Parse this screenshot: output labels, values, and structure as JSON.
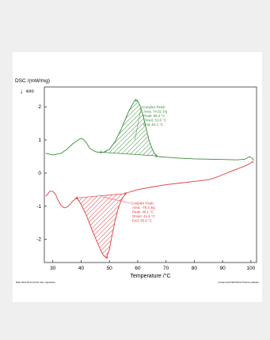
{
  "chart_data": {
    "type": "line",
    "title": "",
    "ylabel": "DSC /(mW/mg)",
    "exo_label": "exo",
    "exo_arrow_glyph": "↓",
    "xlabel": "Temperature /°C",
    "xlim": [
      27,
      102
    ],
    "ylim": [
      -2.7,
      2.6
    ],
    "x_ticks": [
      30,
      40,
      50,
      60,
      70,
      80,
      90,
      100
    ],
    "y_ticks": [
      -2,
      -1,
      0,
      1,
      2
    ],
    "grid": false,
    "series": [
      {
        "color": "#3c8c3c",
        "x": [
          27.5,
          30,
          33,
          35,
          37,
          39,
          40,
          41,
          42,
          43,
          45,
          46,
          48,
          50,
          52,
          54,
          55,
          56,
          57,
          58,
          59,
          60,
          61,
          62,
          63,
          64,
          65,
          66,
          67,
          70,
          75,
          80,
          85,
          90,
          95,
          98,
          99.5,
          100.5,
          101
        ],
        "y": [
          0.6,
          0.55,
          0.6,
          0.72,
          0.88,
          1.0,
          1.05,
          1.0,
          0.9,
          0.75,
          0.65,
          0.63,
          0.63,
          0.72,
          0.95,
          1.3,
          1.5,
          1.7,
          1.9,
          2.05,
          2.2,
          2.18,
          2.0,
          1.7,
          1.35,
          1.0,
          0.75,
          0.58,
          0.5,
          0.48,
          0.45,
          0.43,
          0.42,
          0.41,
          0.4,
          0.42,
          0.5,
          0.45,
          0.38
        ]
      },
      {
        "color": "#e03c3c",
        "x": [
          27.5,
          29,
          30,
          31,
          32,
          33,
          34,
          35,
          36,
          37,
          38.5,
          40,
          42,
          44,
          46,
          47,
          48,
          49,
          50,
          51,
          52,
          53,
          54,
          55,
          56,
          58,
          60,
          65,
          70,
          75,
          80,
          85,
          88,
          90,
          92,
          95,
          98,
          99.5,
          100.5,
          101
        ],
        "y": [
          -0.7,
          -0.55,
          -0.55,
          -0.65,
          -0.85,
          -0.98,
          -1.05,
          -1.03,
          -0.95,
          -0.85,
          -0.75,
          -0.95,
          -1.3,
          -1.75,
          -2.15,
          -2.35,
          -2.5,
          -2.55,
          -2.3,
          -1.85,
          -1.45,
          -1.1,
          -0.85,
          -0.7,
          -0.6,
          -0.55,
          -0.5,
          -0.42,
          -0.35,
          -0.3,
          -0.25,
          -0.2,
          -0.12,
          -0.05,
          0.02,
          0.12,
          0.22,
          0.28,
          0.35,
          0.3
        ]
      }
    ],
    "peaks": [
      {
        "series": 0,
        "title": "Complex Peak:",
        "lines": [
          "Area: 74.62 J/g",
          "Peak: 59.4 °C",
          "Onset: 51.6 °C",
          "End: 64.1 °C"
        ],
        "start": [
          47.0,
          0.63
        ],
        "end": [
          66.5,
          0.52
        ],
        "peak": [
          59.4,
          2.2
        ]
      },
      {
        "series": 1,
        "title": "Complex Peak:",
        "lines": [
          "Area: -79.3 J/g",
          "Peak: 49.1 °C",
          "Onset: 41.5 °C",
          "End: 55.6 °C"
        ],
        "start": [
          38.5,
          -0.75
        ],
        "end": [
          55.6,
          -0.62
        ],
        "peak": [
          49.1,
          -2.55
        ]
      }
    ]
  },
  "footer": {
    "left": "Main 2014-03-13 10:26 User: apparatus",
    "right": "Created with NETZSCH Proteus software"
  }
}
